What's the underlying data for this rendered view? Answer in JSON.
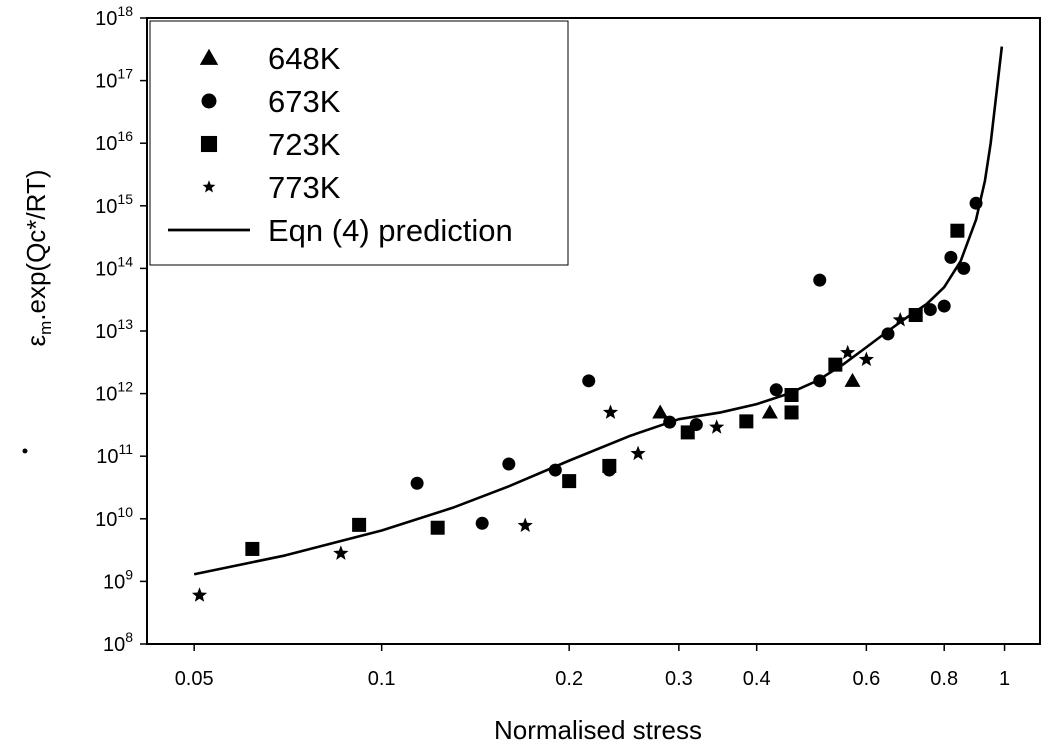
{
  "chart_data": {
    "type": "scatter",
    "xlabel": "Normalised stress",
    "ylabel": {
      "base": "ε",
      "dot": "•",
      "subscript": "m",
      "rest": ".exp(Qc*/RT)"
    },
    "xscale": "log",
    "yscale": "log",
    "xlim": [
      0.042,
      1.14
    ],
    "ylim": [
      100000000.0,
      1e+18
    ],
    "x_ticks": [
      {
        "value": 0.05,
        "label": "0.05"
      },
      {
        "value": 0.1,
        "label": "0.1"
      },
      {
        "value": 0.2,
        "label": "0.2"
      },
      {
        "value": 0.3,
        "label": "0.3"
      },
      {
        "value": 0.4,
        "label": "0.4"
      },
      {
        "value": 0.6,
        "label": "0.6"
      },
      {
        "value": 0.8,
        "label": "0.8"
      },
      {
        "value": 1,
        "label": "1"
      }
    ],
    "y_ticks": [
      {
        "exp": 8,
        "base": "10",
        "sup": "8"
      },
      {
        "exp": 9,
        "base": "10",
        "sup": "9"
      },
      {
        "exp": 10,
        "base": "10",
        "sup": "10"
      },
      {
        "exp": 11,
        "base": "10",
        "sup": "11"
      },
      {
        "exp": 12,
        "base": "10",
        "sup": "12"
      },
      {
        "exp": 13,
        "base": "10",
        "sup": "13"
      },
      {
        "exp": 14,
        "base": "10",
        "sup": "14"
      },
      {
        "exp": 15,
        "base": "10",
        "sup": "15"
      },
      {
        "exp": 16,
        "base": "10",
        "sup": "16"
      },
      {
        "exp": 17,
        "base": "10",
        "sup": "17"
      },
      {
        "exp": 18,
        "base": "10",
        "sup": "18"
      }
    ],
    "grid": false,
    "legend_position": "top-left",
    "series": [
      {
        "name": "648K",
        "marker": "triangle",
        "points": [
          [
            0.28,
            500000000000.0
          ],
          [
            0.42,
            500000000000.0
          ],
          [
            0.57,
            1600000000000.0
          ]
        ]
      },
      {
        "name": "673K",
        "marker": "circle",
        "points": [
          [
            0.114,
            37000000000.0
          ],
          [
            0.145,
            8500000000.0
          ],
          [
            0.16,
            75000000000.0
          ],
          [
            0.19,
            60000000000.0
          ],
          [
            0.215,
            1600000000000.0
          ],
          [
            0.232,
            60000000000.0
          ],
          [
            0.29,
            350000000000.0
          ],
          [
            0.32,
            320000000000.0
          ],
          [
            0.43,
            1150000000000.0
          ],
          [
            0.505,
            1600000000000.0
          ],
          [
            0.505,
            65000000000000.0
          ],
          [
            0.65,
            9000000000000.0
          ],
          [
            0.72,
            18000000000000.0
          ],
          [
            0.76,
            22000000000000.0
          ],
          [
            0.8,
            25000000000000.0
          ],
          [
            0.82,
            150000000000000.0
          ],
          [
            0.86,
            100000000000000.0
          ],
          [
            0.9,
            1100000000000000.0
          ]
        ]
      },
      {
        "name": "723K",
        "marker": "square",
        "points": [
          [
            0.062,
            3300000000.0
          ],
          [
            0.092,
            8000000000.0
          ],
          [
            0.123,
            7200000000.0
          ],
          [
            0.2,
            40000000000.0
          ],
          [
            0.232,
            70000000000.0
          ],
          [
            0.31,
            240000000000.0
          ],
          [
            0.385,
            360000000000.0
          ],
          [
            0.455,
            500000000000.0
          ],
          [
            0.455,
            950000000000.0
          ],
          [
            0.535,
            2900000000000.0
          ],
          [
            0.72,
            18000000000000.0
          ],
          [
            0.84,
            400000000000000.0
          ]
        ]
      },
      {
        "name": "773K",
        "marker": "star",
        "points": [
          [
            0.051,
            600000000.0
          ],
          [
            0.086,
            2800000000.0
          ],
          [
            0.17,
            7800000000.0
          ],
          [
            0.233,
            500000000000.0
          ],
          [
            0.258,
            110000000000.0
          ],
          [
            0.345,
            290000000000.0
          ],
          [
            0.56,
            4500000000000.0
          ],
          [
            0.6,
            3500000000000.0
          ],
          [
            0.68,
            15000000000000.0
          ]
        ]
      },
      {
        "name": "Eqn (4) prediction",
        "marker": "line",
        "points": [
          [
            0.05,
            1300000000.0
          ],
          [
            0.07,
            2600000000.0
          ],
          [
            0.1,
            6500000000.0
          ],
          [
            0.13,
            15000000000.0
          ],
          [
            0.16,
            33000000000.0
          ],
          [
            0.2,
            85000000000.0
          ],
          [
            0.25,
            210000000000.0
          ],
          [
            0.3,
            390000000000.0
          ],
          [
            0.35,
            500000000000.0
          ],
          [
            0.4,
            680000000000.0
          ],
          [
            0.45,
            1000000000000.0
          ],
          [
            0.5,
            1600000000000.0
          ],
          [
            0.55,
            2900000000000.0
          ],
          [
            0.6,
            5500000000000.0
          ],
          [
            0.65,
            10000000000000.0
          ],
          [
            0.7,
            17000000000000.0
          ],
          [
            0.75,
            27000000000000.0
          ],
          [
            0.8,
            50000000000000.0
          ],
          [
            0.85,
            130000000000000.0
          ],
          [
            0.9,
            600000000000000.0
          ],
          [
            0.93,
            2500000000000000.0
          ],
          [
            0.95,
            1e+16
          ],
          [
            0.97,
            6e+16
          ],
          [
            0.99,
            3.5e+17
          ]
        ]
      }
    ]
  }
}
